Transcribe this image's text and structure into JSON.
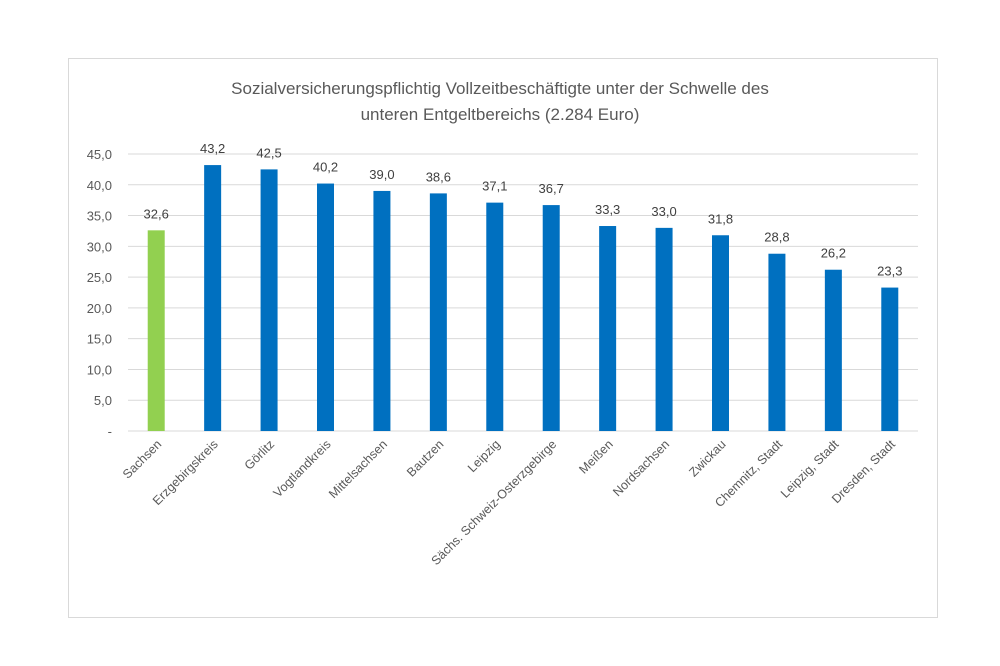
{
  "chart_data": {
    "type": "bar",
    "title_lines": [
      "Sozialversicherungspflichtig Vollzeitbeschäftigte unter der Schwelle des",
      "unteren  Entgeltbereichs (2.284 Euro)"
    ],
    "title": "Sozialversicherungspflichtig Vollzeitbeschäftigte unter der Schwelle des unteren Entgeltbereichs (2.284 Euro)",
    "xlabel": "",
    "ylabel": "",
    "ylim": [
      0,
      45
    ],
    "y_ticks": [
      0,
      5,
      10,
      15,
      20,
      25,
      30,
      35,
      40,
      45
    ],
    "y_tick_labels": [
      "-",
      "5,0",
      "10,0",
      "15,0",
      "20,0",
      "25,0",
      "30,0",
      "35,0",
      "40,0",
      "45,0"
    ],
    "grid": true,
    "legend": "none",
    "categories": [
      "Sachsen",
      "Erzgebirgskreis",
      "Görlitz",
      "Vogtlandkreis",
      "Mittelsachsen",
      "Bautzen",
      "Leipzig",
      "Sächs. Schweiz-Osterzgebirge",
      "Meißen",
      "Nordsachsen",
      "Zwickau",
      "Chemnitz, Stadt",
      "Leipzig, Stadt",
      "Dresden, Stadt"
    ],
    "values": [
      32.6,
      43.2,
      42.5,
      40.2,
      39.0,
      38.6,
      37.1,
      36.7,
      33.3,
      33.0,
      31.8,
      28.8,
      26.2,
      23.3
    ],
    "data_labels": [
      "32,6",
      "43,2",
      "42,5",
      "40,2",
      "39,0",
      "38,6",
      "37,1",
      "36,7",
      "33,3",
      "33,0",
      "31,8",
      "28,8",
      "26,2",
      "23,3"
    ],
    "colors": {
      "highlight": "#92d050",
      "default": "#0070c0",
      "gridline": "#d9d9d9"
    },
    "highlight_index": 0
  }
}
